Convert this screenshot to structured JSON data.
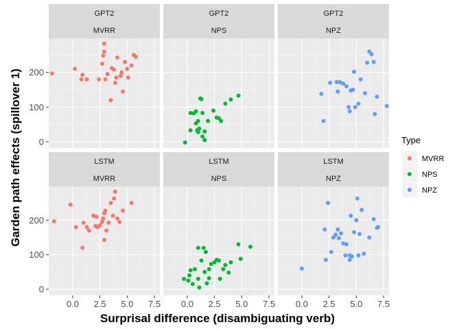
{
  "chart_data": {
    "type": "scatter",
    "xlabel": "Surprisal difference (disambiguating verb)",
    "ylabel": "Garden path effects (spillover 1)",
    "xlim": [
      -2.2,
      8
    ],
    "ylim": [
      -18,
      298
    ],
    "x_ticks": [
      0,
      2.5,
      5,
      7.5
    ],
    "x_tick_labels": [
      "0.0",
      "2.5",
      "5.0",
      "7.5"
    ],
    "y_ticks": [
      0,
      100,
      200
    ],
    "y_tick_labels": [
      "0",
      "100",
      "200"
    ],
    "grid": true,
    "legend": {
      "title": "Type",
      "position": "right",
      "entries": [
        {
          "label": "MVRR",
          "color": "#F8766D"
        },
        {
          "label": "NPS",
          "color": "#00BA38"
        },
        {
          "label": "NPZ",
          "color": "#619CFF"
        }
      ]
    },
    "panels": [
      {
        "row": 0,
        "col": 0,
        "strip_top": "GPT2",
        "strip_bottom": "MVRR",
        "series": "MVRR",
        "points": [
          [
            -1.9,
            197
          ],
          [
            0.2,
            210
          ],
          [
            0.8,
            180
          ],
          [
            0.9,
            193
          ],
          [
            1.3,
            180
          ],
          [
            2.4,
            180
          ],
          [
            2.7,
            225
          ],
          [
            2.8,
            248
          ],
          [
            2.9,
            260
          ],
          [
            2.9,
            283
          ],
          [
            3.0,
            180
          ],
          [
            3.2,
            195
          ],
          [
            3.5,
            120
          ],
          [
            3.6,
            212
          ],
          [
            3.8,
            208
          ],
          [
            3.9,
            170
          ],
          [
            4.0,
            185
          ],
          [
            4.1,
            243
          ],
          [
            4.4,
            190
          ],
          [
            4.5,
            200
          ],
          [
            4.6,
            145
          ],
          [
            4.8,
            230
          ],
          [
            5.0,
            210
          ],
          [
            5.1,
            185
          ],
          [
            5.4,
            220
          ],
          [
            5.6,
            250
          ],
          [
            5.8,
            245
          ]
        ]
      },
      {
        "row": 0,
        "col": 1,
        "strip_top": "GPT2",
        "strip_bottom": "NPS",
        "series": "NPS",
        "points": [
          [
            -0.2,
            -2
          ],
          [
            0.3,
            33
          ],
          [
            0.3,
            83
          ],
          [
            0.6,
            82
          ],
          [
            0.8,
            88
          ],
          [
            0.8,
            53
          ],
          [
            0.9,
            33
          ],
          [
            1.0,
            60
          ],
          [
            1.0,
            28
          ],
          [
            1.1,
            38
          ],
          [
            1.2,
            125
          ],
          [
            1.3,
            123
          ],
          [
            1.4,
            83
          ],
          [
            1.4,
            15
          ],
          [
            1.6,
            30
          ],
          [
            1.6,
            5
          ],
          [
            1.9,
            60
          ],
          [
            2.4,
            90
          ],
          [
            2.7,
            70
          ],
          [
            2.9,
            68
          ],
          [
            3.1,
            60
          ],
          [
            3.5,
            110
          ],
          [
            4.0,
            122
          ],
          [
            4.7,
            133
          ]
        ]
      },
      {
        "row": 0,
        "col": 2,
        "strip_top": "GPT2",
        "strip_bottom": "NPZ",
        "series": "NPZ",
        "points": [
          [
            1.8,
            138
          ],
          [
            2.0,
            60
          ],
          [
            2.6,
            170
          ],
          [
            3.2,
            172
          ],
          [
            3.3,
            145
          ],
          [
            3.5,
            172
          ],
          [
            3.8,
            168
          ],
          [
            4.1,
            160
          ],
          [
            4.3,
            100
          ],
          [
            4.4,
            88
          ],
          [
            4.5,
            148
          ],
          [
            4.7,
            150
          ],
          [
            4.8,
            202
          ],
          [
            4.9,
            100
          ],
          [
            5.2,
            110
          ],
          [
            5.4,
            180
          ],
          [
            5.8,
            140
          ],
          [
            6.0,
            228
          ],
          [
            6.2,
            260
          ],
          [
            6.4,
            252
          ],
          [
            6.6,
            230
          ],
          [
            6.7,
            80
          ],
          [
            6.9,
            130
          ],
          [
            7.8,
            103
          ]
        ]
      },
      {
        "row": 1,
        "col": 0,
        "strip_top": "LSTM",
        "strip_bottom": "MVRR",
        "series": "MVRR",
        "points": [
          [
            -1.7,
            197
          ],
          [
            -0.2,
            245
          ],
          [
            0.3,
            180
          ],
          [
            0.9,
            120
          ],
          [
            1.0,
            193
          ],
          [
            1.3,
            180
          ],
          [
            1.5,
            170
          ],
          [
            1.9,
            213
          ],
          [
            2.1,
            183
          ],
          [
            2.2,
            210
          ],
          [
            2.3,
            180
          ],
          [
            2.5,
            185
          ],
          [
            2.7,
            195
          ],
          [
            2.8,
            205
          ],
          [
            2.9,
            220
          ],
          [
            3.0,
            228
          ],
          [
            2.9,
            143
          ],
          [
            3.1,
            170
          ],
          [
            3.3,
            193
          ],
          [
            3.5,
            250
          ],
          [
            3.7,
            213
          ],
          [
            3.8,
            263
          ],
          [
            3.9,
            283
          ],
          [
            4.1,
            205
          ],
          [
            4.3,
            195
          ],
          [
            4.6,
            228
          ],
          [
            5.4,
            250
          ]
        ]
      },
      {
        "row": 1,
        "col": 1,
        "strip_top": "LSTM",
        "strip_bottom": "NPS",
        "series": "NPS",
        "points": [
          [
            -0.3,
            30
          ],
          [
            0.1,
            25
          ],
          [
            0.2,
            40
          ],
          [
            0.3,
            55
          ],
          [
            0.5,
            15
          ],
          [
            0.7,
            58
          ],
          [
            1.0,
            30
          ],
          [
            1.0,
            120
          ],
          [
            1.1,
            5
          ],
          [
            1.3,
            83
          ],
          [
            1.5,
            120
          ],
          [
            1.6,
            50
          ],
          [
            1.7,
            108
          ],
          [
            1.8,
            17
          ],
          [
            2.0,
            32
          ],
          [
            2.0,
            58
          ],
          [
            2.2,
            73
          ],
          [
            2.5,
            78
          ],
          [
            2.7,
            85
          ],
          [
            2.9,
            83
          ],
          [
            3.0,
            30
          ],
          [
            3.3,
            58
          ],
          [
            3.5,
            70
          ],
          [
            3.8,
            48
          ],
          [
            4.0,
            78
          ],
          [
            4.7,
            130
          ],
          [
            4.9,
            88
          ],
          [
            5.8,
            123
          ]
        ]
      },
      {
        "row": 1,
        "col": 2,
        "strip_top": "LSTM",
        "strip_bottom": "NPZ",
        "series": "NPZ",
        "points": [
          [
            0.0,
            60
          ],
          [
            2.1,
            173
          ],
          [
            2.2,
            85
          ],
          [
            2.4,
            250
          ],
          [
            2.7,
            108
          ],
          [
            2.9,
            150
          ],
          [
            3.1,
            158
          ],
          [
            3.3,
            173
          ],
          [
            3.4,
            148
          ],
          [
            3.6,
            162
          ],
          [
            3.8,
            133
          ],
          [
            4.0,
            98
          ],
          [
            4.1,
            130
          ],
          [
            4.4,
            85
          ],
          [
            4.4,
            98
          ],
          [
            4.5,
            213
          ],
          [
            4.6,
            95
          ],
          [
            4.8,
            165
          ],
          [
            5.0,
            200
          ],
          [
            5.1,
            263
          ],
          [
            5.2,
            98
          ],
          [
            5.3,
            160
          ],
          [
            5.5,
            230
          ],
          [
            5.7,
            103
          ],
          [
            6.2,
            150
          ],
          [
            6.6,
            203
          ],
          [
            6.9,
            178
          ],
          [
            7.0,
            180
          ]
        ]
      }
    ]
  }
}
